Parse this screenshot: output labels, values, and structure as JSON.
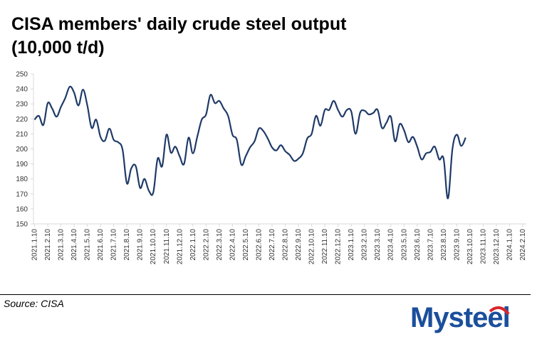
{
  "title_line1": "CISA members' daily crude steel output",
  "title_line2": "(10,000 t/d)",
  "source": "Source: CISA",
  "logo_text": "Mysteel",
  "colors": {
    "line": "#1f3a68",
    "axis": "#d9d9d9",
    "logo_blue": "#1b4f9c",
    "logo_red": "#d9262c"
  },
  "chart_data": {
    "type": "line",
    "title": "CISA members' daily crude steel output (10,000 t/d)",
    "xlabel": "",
    "ylabel": "",
    "ylim": [
      150,
      250
    ],
    "yticks": [
      150,
      160,
      170,
      180,
      190,
      200,
      210,
      220,
      230,
      240,
      250
    ],
    "grid": false,
    "x_tick_labels": [
      "2021.1.10",
      "2021.2.10",
      "2021.3.10",
      "2021.4.10",
      "2021.5.10",
      "2021.6.10",
      "2021.7.10",
      "2021.8.10",
      "2021.9.10",
      "2021.10.10",
      "2021.11.10",
      "2021.12.10",
      "2022.1.10",
      "2022.2.10",
      "2022.3.10",
      "2022.4.10",
      "2022.5.10",
      "2022.6.10",
      "2022.7.10",
      "2022.8.10",
      "2022.9.10",
      "2022.10.10",
      "2022.11.10",
      "2022.12.10",
      "2023.1.10",
      "2023.2.10",
      "2023.3.10",
      "2023.4.10",
      "2023.5.10",
      "2023.6.10",
      "2023.7.10",
      "2023.8.10",
      "2023.9.10",
      "2023.10.10",
      "2023.11.10",
      "2023.12.10",
      "2024.1.10",
      "2024.2.10"
    ],
    "x_index": [
      0,
      0.33,
      0.67,
      1,
      1.33,
      1.67,
      2,
      2.33,
      2.67,
      3,
      3.33,
      3.67,
      4,
      4.33,
      4.67,
      5,
      5.33,
      5.67,
      6,
      6.33,
      6.67,
      7,
      7.33,
      7.67,
      8,
      8.33,
      8.67,
      9,
      9.33,
      9.67,
      10,
      10.33,
      10.67,
      11,
      11.33,
      11.67,
      12,
      12.33,
      12.67,
      13,
      13.33,
      13.67,
      14,
      14.33,
      14.67,
      15,
      15.33,
      15.67,
      16,
      16.33,
      16.67,
      17,
      17.33,
      17.67,
      18,
      18.33,
      18.67,
      19,
      19.33,
      19.67,
      20,
      20.33,
      20.67,
      21,
      21.33,
      21.67,
      22,
      22.33,
      22.67,
      23,
      23.33,
      23.67,
      24,
      24.33,
      24.67,
      25,
      25.33,
      25.67,
      26,
      26.33,
      26.67,
      27,
      27.33,
      27.67,
      28,
      28.33,
      28.67,
      29,
      29.33,
      29.67,
      30,
      30.33,
      30.67,
      31,
      31.33,
      31.67,
      32,
      32.33,
      32.67,
      33,
      33.33,
      33.67,
      34,
      34.33,
      34.67,
      35,
      35.33,
      35.67,
      36,
      36.33,
      36.67,
      37
    ],
    "series": [
      {
        "values": [
          219.5,
          222,
          216,
          230.5,
          227,
          221.5,
          228,
          234,
          241.5,
          237.5,
          229,
          239.5,
          229,
          214,
          219.5,
          208,
          205.5,
          213.5,
          206,
          204.5,
          199.5,
          177,
          187,
          188.5,
          174,
          180,
          172,
          171,
          193.5,
          188.5,
          209.5,
          197.5,
          201.5,
          195,
          190,
          207.5,
          197,
          208,
          219.5,
          223,
          236,
          230.5,
          232,
          227,
          222,
          209.5,
          206,
          189.5,
          195,
          201,
          205,
          213.5,
          212,
          207,
          201,
          199,
          202.5,
          198.5,
          196,
          192,
          193.5,
          197,
          207,
          210,
          222,
          215.5,
          226,
          226,
          232,
          226,
          221.5,
          226,
          225,
          210,
          224,
          225.5,
          223,
          224,
          226,
          214,
          217.5,
          221.5,
          205,
          216.5,
          212.5,
          204.5,
          208,
          201.5,
          193,
          197,
          198,
          201.5,
          193,
          193.5,
          167,
          200,
          209.5,
          202,
          207.5
        ]
      }
    ]
  }
}
